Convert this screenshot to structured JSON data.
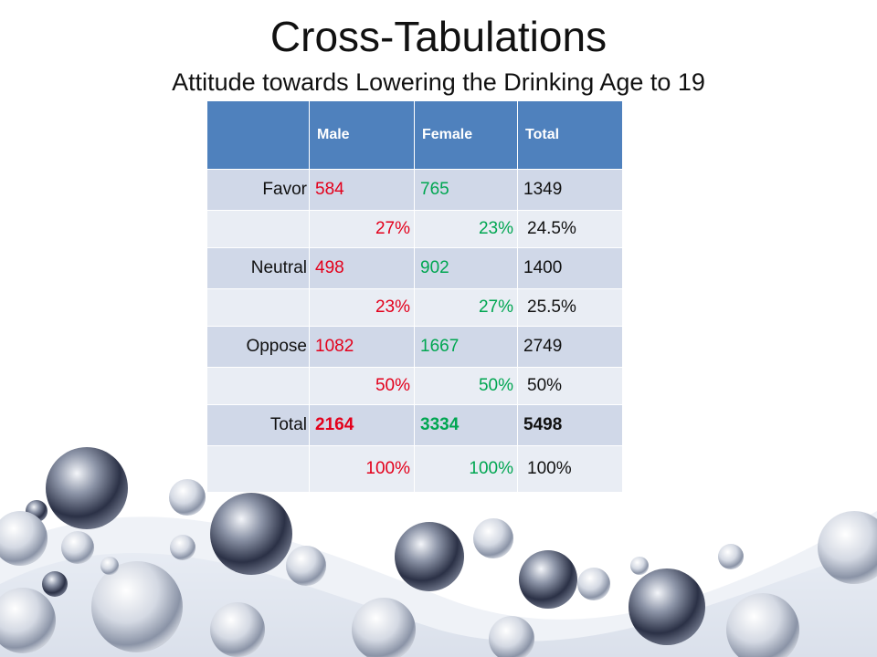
{
  "slide": {
    "title": "Cross-Tabulations",
    "subtitle": "Attitude towards Lowering the Drinking Age to 19"
  },
  "table": {
    "headers": [
      "",
      "Male",
      "Female",
      "Total"
    ],
    "rows": [
      {
        "label": "Favor",
        "male": "584",
        "female": "765",
        "total": "1349"
      },
      {
        "label": "",
        "male": "27%",
        "female": "23%",
        "total": "24.5%"
      },
      {
        "label": "Neutral",
        "male": "498",
        "female": "902",
        "total": "1400"
      },
      {
        "label": "",
        "male": "23%",
        "female": "27%",
        "total": "25.5%"
      },
      {
        "label": "Oppose",
        "male": "1082",
        "female": "1667",
        "total": "2749"
      },
      {
        "label": "",
        "male": "50%",
        "female": "50%",
        "total": "50%"
      },
      {
        "label": "Total",
        "male": "2164",
        "female": "3334",
        "total": "5498"
      },
      {
        "label": "",
        "male": "100%",
        "female": "100%",
        "total": "100%"
      }
    ]
  },
  "colors": {
    "header_bg": "#4f81bd",
    "count_row_bg": "#d0d8e8",
    "pct_row_bg": "#e9edf4",
    "male_text": "#e3001b",
    "female_text": "#00a651"
  },
  "decoration": {
    "background_icon": "glass-bubbles-decoration"
  }
}
